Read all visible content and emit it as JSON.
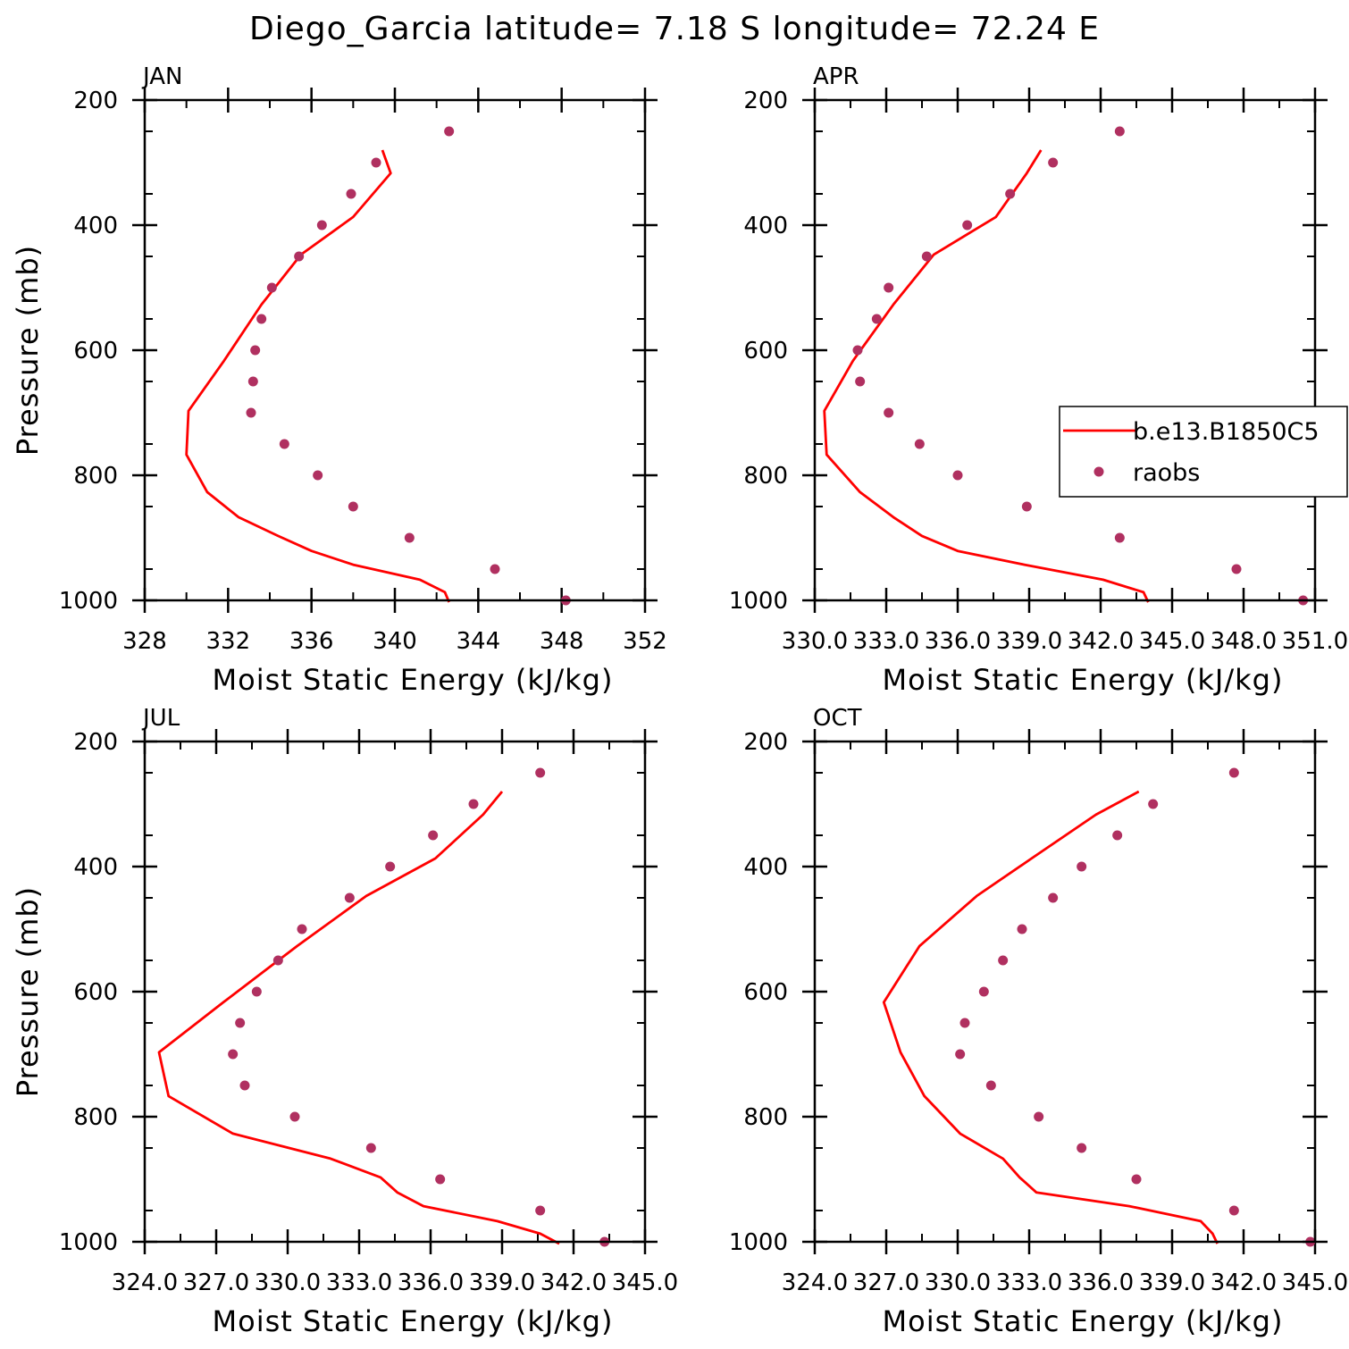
{
  "suptitle": "Diego_Garcia  latitude= 7.18 S longitude= 72.24 E",
  "colors": {
    "model": "#ff0000",
    "obs": "#b03060",
    "axis": "#000000",
    "background": "#ffffff"
  },
  "legend": {
    "model_label": "b.e13.B1850C5",
    "obs_label": "raobs"
  },
  "chart_data": [
    {
      "type": "line",
      "title": "JAN",
      "xlabel": "Moist Static Energy (kJ/kg)",
      "ylabel": "Pressure (mb)",
      "xlim": [
        328,
        352
      ],
      "ylim": [
        1000,
        200
      ],
      "xticks": [
        328,
        332,
        336,
        340,
        344,
        348,
        352
      ],
      "xtick_labels": [
        "328",
        "332",
        "336",
        "340",
        "344",
        "348",
        "352"
      ],
      "yticks": [
        200,
        400,
        600,
        800,
        1000
      ],
      "ytick_labels": [
        "200",
        "400",
        "600",
        "800",
        "1000"
      ],
      "series": [
        {
          "name": "b.e13.B1850C5",
          "kind": "line",
          "x": [
            342.6,
            342.4,
            341.2,
            338.0,
            336.0,
            334.4,
            332.5,
            331.0,
            330.0,
            330.1,
            331.8,
            333.6,
            335.5,
            338.0,
            339.8,
            339.4
          ],
          "y": [
            1003,
            987,
            967,
            943,
            921,
            897,
            867,
            827,
            767,
            697,
            617,
            527,
            447,
            387,
            317,
            280
          ]
        },
        {
          "name": "raobs",
          "kind": "scatter",
          "x": [
            348.2,
            344.8,
            340.7,
            338.0,
            336.3,
            334.7,
            333.1,
            333.2,
            333.3,
            333.6,
            334.1,
            335.4,
            336.5,
            337.9,
            339.1,
            342.6
          ],
          "y": [
            1000,
            950,
            900,
            850,
            800,
            750,
            700,
            650,
            600,
            550,
            500,
            450,
            400,
            350,
            300,
            250
          ]
        }
      ],
      "show_legend": false
    },
    {
      "type": "line",
      "title": "APR",
      "xlabel": "Moist Static Energy (kJ/kg)",
      "ylabel": "",
      "xlim": [
        330.0,
        351.0
      ],
      "ylim": [
        1000,
        200
      ],
      "xticks": [
        330,
        333,
        336,
        339,
        342,
        345,
        348,
        351
      ],
      "xtick_labels": [
        "330.0",
        "333.0",
        "336.0",
        "339.0",
        "342.0",
        "345.0",
        "348.0",
        "351.0"
      ],
      "yticks": [
        200,
        400,
        600,
        800,
        1000
      ],
      "ytick_labels": [
        "200",
        "400",
        "600",
        "800",
        "1000"
      ],
      "series": [
        {
          "name": "b.e13.B1850C5",
          "kind": "line",
          "x": [
            344.0,
            343.8,
            342.1,
            338.8,
            336.0,
            334.5,
            333.3,
            331.9,
            330.5,
            330.4,
            331.6,
            333.3,
            335.0,
            337.6,
            338.9,
            339.5
          ],
          "y": [
            1003,
            987,
            967,
            943,
            921,
            897,
            867,
            827,
            767,
            697,
            617,
            527,
            447,
            387,
            317,
            280
          ]
        },
        {
          "name": "raobs",
          "kind": "scatter",
          "x": [
            350.5,
            347.7,
            342.8,
            338.9,
            336.0,
            334.4,
            333.1,
            331.9,
            331.8,
            332.6,
            333.1,
            334.7,
            336.4,
            338.2,
            340.0,
            342.8
          ],
          "y": [
            1000,
            950,
            900,
            850,
            800,
            750,
            700,
            650,
            600,
            550,
            500,
            450,
            400,
            350,
            300,
            250
          ]
        }
      ],
      "show_legend": true
    },
    {
      "type": "line",
      "title": "JUL",
      "xlabel": "Moist Static Energy (kJ/kg)",
      "ylabel": "Pressure (mb)",
      "xlim": [
        324.0,
        345.0
      ],
      "ylim": [
        1000,
        200
      ],
      "xticks": [
        324,
        327,
        330,
        333,
        336,
        339,
        342,
        345
      ],
      "xtick_labels": [
        "324.0",
        "327.0",
        "330.0",
        "333.0",
        "336.0",
        "339.0",
        "342.0",
        "345.0"
      ],
      "yticks": [
        200,
        400,
        600,
        800,
        1000
      ],
      "ytick_labels": [
        "200",
        "400",
        "600",
        "800",
        "1000"
      ],
      "series": [
        {
          "name": "b.e13.B1850C5",
          "kind": "line",
          "x": [
            341.4,
            340.6,
            338.8,
            335.7,
            334.6,
            333.9,
            331.8,
            327.7,
            325.0,
            324.6,
            327.3,
            330.4,
            333.3,
            336.2,
            338.2,
            339.0
          ],
          "y": [
            1003,
            987,
            967,
            943,
            921,
            897,
            867,
            827,
            767,
            697,
            617,
            527,
            447,
            387,
            317,
            280
          ]
        },
        {
          "name": "raobs",
          "kind": "scatter",
          "x": [
            343.3,
            340.6,
            336.4,
            333.5,
            330.3,
            328.2,
            327.7,
            328.0,
            328.7,
            329.6,
            330.6,
            332.6,
            334.3,
            336.1,
            337.8,
            340.6
          ],
          "y": [
            1000,
            950,
            900,
            850,
            800,
            750,
            700,
            650,
            600,
            550,
            500,
            450,
            400,
            350,
            300,
            250
          ]
        }
      ],
      "show_legend": false
    },
    {
      "type": "line",
      "title": "OCT",
      "xlabel": "Moist Static Energy (kJ/kg)",
      "ylabel": "",
      "xlim": [
        324.0,
        345.0
      ],
      "ylim": [
        1000,
        200
      ],
      "xticks": [
        324,
        327,
        330,
        333,
        336,
        339,
        342,
        345
      ],
      "xtick_labels": [
        "324.0",
        "327.0",
        "330.0",
        "333.0",
        "336.0",
        "339.0",
        "342.0",
        "345.0"
      ],
      "yticks": [
        200,
        400,
        600,
        800,
        1000
      ],
      "ytick_labels": [
        "200",
        "400",
        "600",
        "800",
        "1000"
      ],
      "series": [
        {
          "name": "b.e13.B1850C5",
          "kind": "line",
          "x": [
            340.9,
            340.7,
            340.2,
            337.2,
            333.3,
            332.6,
            331.9,
            330.1,
            328.6,
            327.6,
            326.9,
            328.4,
            330.8,
            333.1,
            335.8,
            337.6
          ],
          "y": [
            1003,
            987,
            967,
            943,
            921,
            897,
            867,
            827,
            767,
            697,
            617,
            527,
            447,
            387,
            317,
            280
          ]
        },
        {
          "name": "raobs",
          "kind": "scatter",
          "x": [
            344.8,
            341.6,
            337.5,
            335.2,
            333.4,
            331.4,
            330.1,
            330.3,
            331.1,
            331.9,
            332.7,
            334.0,
            335.2,
            336.7,
            338.2,
            341.6
          ],
          "y": [
            1000,
            950,
            900,
            850,
            800,
            750,
            700,
            650,
            600,
            550,
            500,
            450,
            400,
            350,
            300,
            250
          ]
        }
      ],
      "show_legend": false
    }
  ]
}
